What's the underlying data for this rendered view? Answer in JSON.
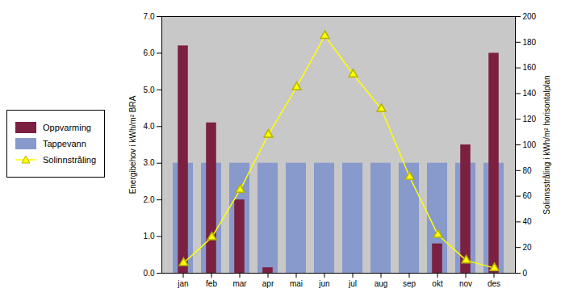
{
  "chart_data": {
    "type": "bar",
    "categories": [
      "jan",
      "feb",
      "mar",
      "apr",
      "mai",
      "jun",
      "jul",
      "aug",
      "sep",
      "okt",
      "nov",
      "des"
    ],
    "series": [
      {
        "name": "Oppvarming",
        "color": "#7B2040",
        "type": "bar",
        "values": [
          6.2,
          4.1,
          2.0,
          0.15,
          0.0,
          0.0,
          0.0,
          0.0,
          0.0,
          0.8,
          3.5,
          6.0
        ]
      },
      {
        "name": "Tappevann",
        "color": "#8899CC",
        "type": "bar",
        "values": [
          3.0,
          3.0,
          3.0,
          3.0,
          3.0,
          3.0,
          3.0,
          3.0,
          3.0,
          3.0,
          3.0,
          3.0
        ]
      },
      {
        "name": "Solinnstråling",
        "color": "#FFFF00",
        "type": "line",
        "marker": "triangle",
        "axis": "y2",
        "values": [
          8,
          28,
          65,
          108,
          145,
          185,
          155,
          128,
          75,
          30,
          10,
          4
        ]
      }
    ],
    "ylabel": "Energibehov i kWh/m² BRA",
    "y2label": "Solinnsstråling i kWh/m² horisontalplan",
    "ylim": [
      0,
      7
    ],
    "yticks": [
      0,
      1,
      2,
      3,
      4,
      5,
      6,
      7
    ],
    "y2lim": [
      0,
      200
    ],
    "y2ticks": [
      0,
      20,
      40,
      60,
      80,
      100,
      120,
      140,
      160,
      180,
      200
    ],
    "legend": "left"
  }
}
